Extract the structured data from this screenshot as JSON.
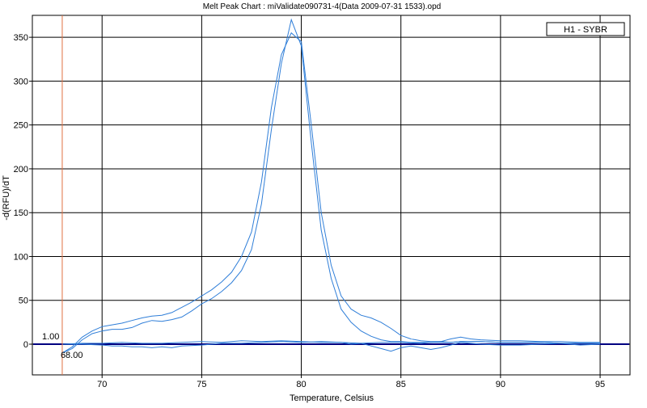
{
  "chart_data": {
    "type": "line",
    "title": "Melt Peak Chart : miValidate090731-4(Data 2009-07-31 1533).opd",
    "xlabel": "Temperature, Celsius",
    "ylabel": "-d(RFU)/dT",
    "xlim": [
      66.5,
      96.5
    ],
    "ylim": [
      -35,
      375
    ],
    "xticks": [
      70,
      75,
      80,
      85,
      90,
      95
    ],
    "yticks": [
      0,
      50,
      100,
      150,
      200,
      250,
      300,
      350
    ],
    "grid": true,
    "legend": {
      "position": "top-right",
      "entries": [
        "H1 - SYBR"
      ]
    },
    "threshold": {
      "value": 1.0,
      "label": "1.00"
    },
    "cursor": {
      "x": 68.0,
      "label": "68.00"
    },
    "series": [
      {
        "x": [
          68.0,
          68.5,
          69.0,
          69.5,
          70.0,
          70.5,
          71.0,
          71.5,
          72.0,
          72.5,
          73.0,
          73.5,
          74.0,
          74.5,
          75.0,
          75.5,
          76.0,
          76.5,
          77.0,
          77.5,
          78.0,
          78.5,
          79.0,
          79.5,
          80.0,
          80.5,
          81.0,
          81.5,
          82.0,
          82.5,
          83.0,
          83.5,
          84.0,
          84.5,
          85.0,
          85.5,
          86.0,
          86.5,
          87.0,
          87.5,
          88.0,
          89.0,
          90.0,
          91.0,
          92.0,
          93.0,
          94.0,
          95.0
        ],
        "values": [
          -10,
          -3,
          8,
          15,
          20,
          22,
          24,
          27,
          30,
          32,
          33,
          36,
          42,
          48,
          55,
          62,
          71,
          82,
          100,
          128,
          185,
          270,
          330,
          355,
          345,
          250,
          150,
          90,
          55,
          40,
          33,
          30,
          25,
          18,
          10,
          6,
          4,
          3,
          3,
          2,
          3,
          3,
          2,
          2,
          2,
          1,
          1,
          1
        ]
      },
      {
        "x": [
          68.0,
          68.5,
          69.0,
          69.5,
          70.0,
          70.5,
          71.0,
          71.5,
          72.0,
          72.5,
          73.0,
          73.5,
          74.0,
          74.5,
          75.0,
          75.5,
          76.0,
          76.5,
          77.0,
          77.5,
          78.0,
          78.5,
          79.0,
          79.5,
          80.0,
          80.5,
          81.0,
          81.5,
          82.0,
          82.5,
          83.0,
          83.5,
          84.0,
          84.5,
          85.0,
          85.5,
          86.0,
          86.5,
          87.0,
          87.5,
          88.0,
          89.0,
          90.0,
          91.0,
          92.0,
          93.0,
          94.0,
          95.0
        ],
        "values": [
          -10,
          -5,
          5,
          12,
          15,
          17,
          17,
          19,
          24,
          27,
          26,
          28,
          31,
          38,
          46,
          52,
          60,
          70,
          84,
          108,
          160,
          245,
          320,
          370,
          340,
          230,
          130,
          75,
          40,
          25,
          15,
          9,
          5,
          3,
          3,
          2,
          2,
          2,
          2,
          2,
          3,
          3,
          2,
          2,
          2,
          1,
          1,
          1
        ]
      },
      {
        "x": [
          68.0,
          69.0,
          70.0,
          70.5,
          71.0,
          71.5,
          72.0,
          72.5,
          73.0,
          73.5,
          74.0,
          75.0,
          76.0,
          77.0,
          78.0,
          79.0,
          80.0,
          81.0,
          82.0,
          82.5,
          83.0,
          83.5,
          84.0,
          84.5,
          85.0,
          85.5,
          86.0,
          86.5,
          87.0,
          87.5,
          88.0,
          88.5,
          89.0,
          90.0,
          91.0,
          92.0,
          93.0,
          94.0,
          95.0
        ],
        "values": [
          0,
          0,
          -1,
          -2,
          -2,
          -3,
          -3,
          -4,
          -3,
          -4,
          -2,
          -1,
          1,
          1,
          2,
          3,
          2,
          3,
          2,
          0,
          1,
          -2,
          -5,
          -8,
          -4,
          -2,
          -4,
          -6,
          -4,
          -1,
          2,
          1,
          0,
          -1,
          -1,
          0,
          1,
          -1,
          0
        ]
      },
      {
        "x": [
          68.0,
          69.0,
          70.0,
          71.0,
          72.0,
          73.0,
          74.0,
          75.0,
          76.0,
          77.0,
          78.0,
          79.0,
          80.0,
          81.0,
          82.0,
          83.0,
          84.0,
          85.0,
          86.0,
          87.0,
          87.5,
          88.0,
          88.5,
          89.0,
          90.0,
          91.0,
          92.0,
          93.0,
          94.0,
          95.0
        ],
        "values": [
          0,
          1,
          1,
          2,
          1,
          1,
          2,
          3,
          2,
          4,
          3,
          4,
          3,
          2,
          2,
          1,
          2,
          2,
          1,
          3,
          6,
          8,
          6,
          5,
          4,
          4,
          3,
          3,
          2,
          2
        ]
      }
    ]
  },
  "colors": {
    "series": "#2f7ed8",
    "baseline": "#000080",
    "cursor": "#e07040",
    "grid": "#000000"
  }
}
